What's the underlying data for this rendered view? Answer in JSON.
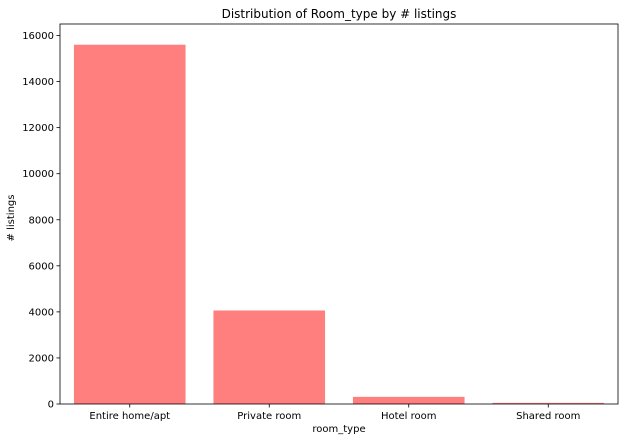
{
  "chart_data": {
    "type": "bar",
    "title": "Distribution of Room_type by # listings",
    "xlabel": "room_type",
    "ylabel": "# listings",
    "categories": [
      "Entire home/apt",
      "Private room",
      "Hotel room",
      "Shared room"
    ],
    "values": [
      15600,
      4060,
      310,
      50
    ],
    "ylim": [
      0,
      16500
    ],
    "yticks": [
      0,
      2000,
      4000,
      6000,
      8000,
      10000,
      12000,
      14000,
      16000
    ],
    "bar_color": "#ff7f7f",
    "grid": false,
    "legend": "none"
  }
}
